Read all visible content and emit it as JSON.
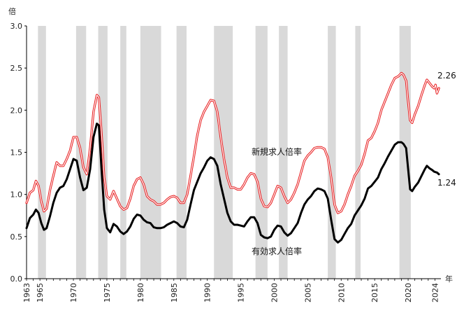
{
  "chart_data": {
    "type": "line",
    "y_unit": "倍",
    "x_unit": "年",
    "xlim": [
      1963,
      2024.9
    ],
    "ylim": [
      0.0,
      3.0
    ],
    "y_ticks": [
      "0.0",
      "0.5",
      "1.0",
      "1.5",
      "2.0",
      "2.5",
      "3.0"
    ],
    "x_tick_years": [
      1963,
      1965,
      1970,
      1975,
      1980,
      1985,
      1990,
      1995,
      2000,
      2005,
      2010,
      2015,
      2020,
      2024
    ],
    "recession_periods": [
      [
        1964.7,
        1965.9
      ],
      [
        1970.4,
        1971.9
      ],
      [
        1973.7,
        1975.1
      ],
      [
        1977.0,
        1977.9
      ],
      [
        1980.0,
        1983.1
      ],
      [
        1985.4,
        1986.9
      ],
      [
        1991.0,
        1993.8
      ],
      [
        1997.2,
        1999.0
      ],
      [
        2000.7,
        2002.0
      ],
      [
        2008.0,
        2009.2
      ],
      [
        2012.1,
        2012.9
      ],
      [
        2018.7,
        2020.4
      ]
    ],
    "series": [
      {
        "name": "新規求人倍率",
        "color": "#e8191b",
        "end_label": "2.26",
        "points": [
          [
            1963.0,
            0.9
          ],
          [
            1963.5,
            1.02
          ],
          [
            1964.0,
            1.05
          ],
          [
            1964.4,
            1.16
          ],
          [
            1964.8,
            1.1
          ],
          [
            1965.2,
            0.92
          ],
          [
            1965.6,
            0.8
          ],
          [
            1966.0,
            0.83
          ],
          [
            1966.5,
            1.05
          ],
          [
            1967.0,
            1.22
          ],
          [
            1967.5,
            1.38
          ],
          [
            1968.0,
            1.34
          ],
          [
            1968.5,
            1.34
          ],
          [
            1969.0,
            1.42
          ],
          [
            1969.5,
            1.52
          ],
          [
            1970.0,
            1.68
          ],
          [
            1970.5,
            1.68
          ],
          [
            1971.0,
            1.55
          ],
          [
            1971.5,
            1.32
          ],
          [
            1972.0,
            1.24
          ],
          [
            1972.5,
            1.55
          ],
          [
            1973.0,
            1.98
          ],
          [
            1973.5,
            2.18
          ],
          [
            1973.8,
            2.15
          ],
          [
            1974.2,
            1.72
          ],
          [
            1974.6,
            1.2
          ],
          [
            1975.0,
            0.98
          ],
          [
            1975.5,
            0.94
          ],
          [
            1976.0,
            1.04
          ],
          [
            1976.5,
            0.95
          ],
          [
            1977.0,
            0.86
          ],
          [
            1977.5,
            0.82
          ],
          [
            1978.0,
            0.84
          ],
          [
            1978.5,
            0.95
          ],
          [
            1979.0,
            1.1
          ],
          [
            1979.5,
            1.18
          ],
          [
            1980.0,
            1.2
          ],
          [
            1980.5,
            1.12
          ],
          [
            1981.0,
            0.98
          ],
          [
            1981.5,
            0.94
          ],
          [
            1982.0,
            0.92
          ],
          [
            1982.5,
            0.88
          ],
          [
            1983.0,
            0.88
          ],
          [
            1983.5,
            0.9
          ],
          [
            1984.0,
            0.94
          ],
          [
            1984.5,
            0.97
          ],
          [
            1985.0,
            0.98
          ],
          [
            1985.5,
            0.96
          ],
          [
            1986.0,
            0.9
          ],
          [
            1986.5,
            0.9
          ],
          [
            1987.0,
            1.0
          ],
          [
            1987.5,
            1.22
          ],
          [
            1988.0,
            1.45
          ],
          [
            1988.5,
            1.7
          ],
          [
            1989.0,
            1.88
          ],
          [
            1989.5,
            1.98
          ],
          [
            1990.0,
            2.05
          ],
          [
            1990.5,
            2.12
          ],
          [
            1991.0,
            2.11
          ],
          [
            1991.5,
            1.98
          ],
          [
            1992.0,
            1.68
          ],
          [
            1992.5,
            1.42
          ],
          [
            1993.0,
            1.2
          ],
          [
            1993.5,
            1.08
          ],
          [
            1994.0,
            1.08
          ],
          [
            1994.5,
            1.06
          ],
          [
            1995.0,
            1.06
          ],
          [
            1995.5,
            1.12
          ],
          [
            1996.0,
            1.2
          ],
          [
            1996.5,
            1.25
          ],
          [
            1997.0,
            1.24
          ],
          [
            1997.5,
            1.15
          ],
          [
            1998.0,
            0.95
          ],
          [
            1998.5,
            0.86
          ],
          [
            1999.0,
            0.85
          ],
          [
            1999.5,
            0.9
          ],
          [
            2000.0,
            1.0
          ],
          [
            2000.5,
            1.1
          ],
          [
            2001.0,
            1.08
          ],
          [
            2001.5,
            0.98
          ],
          [
            2002.0,
            0.9
          ],
          [
            2002.5,
            0.94
          ],
          [
            2003.0,
            1.02
          ],
          [
            2003.5,
            1.12
          ],
          [
            2004.0,
            1.26
          ],
          [
            2004.5,
            1.4
          ],
          [
            2005.0,
            1.46
          ],
          [
            2005.5,
            1.5
          ],
          [
            2006.0,
            1.55
          ],
          [
            2006.5,
            1.56
          ],
          [
            2007.0,
            1.56
          ],
          [
            2007.5,
            1.54
          ],
          [
            2008.0,
            1.44
          ],
          [
            2008.5,
            1.2
          ],
          [
            2009.0,
            0.88
          ],
          [
            2009.5,
            0.78
          ],
          [
            2010.0,
            0.8
          ],
          [
            2010.5,
            0.88
          ],
          [
            2011.0,
            1.0
          ],
          [
            2011.5,
            1.1
          ],
          [
            2012.0,
            1.22
          ],
          [
            2012.5,
            1.28
          ],
          [
            2013.0,
            1.35
          ],
          [
            2013.5,
            1.48
          ],
          [
            2014.0,
            1.64
          ],
          [
            2014.5,
            1.67
          ],
          [
            2015.0,
            1.75
          ],
          [
            2015.5,
            1.85
          ],
          [
            2016.0,
            2.0
          ],
          [
            2016.5,
            2.1
          ],
          [
            2017.0,
            2.2
          ],
          [
            2017.5,
            2.3
          ],
          [
            2018.0,
            2.38
          ],
          [
            2018.5,
            2.4
          ],
          [
            2019.0,
            2.44
          ],
          [
            2019.3,
            2.42
          ],
          [
            2019.7,
            2.35
          ],
          [
            2020.0,
            2.1
          ],
          [
            2020.3,
            1.88
          ],
          [
            2020.6,
            1.85
          ],
          [
            2021.0,
            1.95
          ],
          [
            2021.5,
            2.05
          ],
          [
            2022.0,
            2.18
          ],
          [
            2022.5,
            2.3
          ],
          [
            2022.8,
            2.36
          ],
          [
            2023.2,
            2.32
          ],
          [
            2023.6,
            2.28
          ],
          [
            2023.9,
            2.26
          ],
          [
            2024.1,
            2.3
          ],
          [
            2024.3,
            2.2
          ],
          [
            2024.6,
            2.26
          ]
        ]
      },
      {
        "name": "有効求人倍率",
        "color": "#000000",
        "end_label": "1.24",
        "points": [
          [
            1963.0,
            0.6
          ],
          [
            1963.5,
            0.72
          ],
          [
            1964.0,
            0.76
          ],
          [
            1964.4,
            0.82
          ],
          [
            1964.8,
            0.78
          ],
          [
            1965.2,
            0.66
          ],
          [
            1965.6,
            0.58
          ],
          [
            1966.0,
            0.6
          ],
          [
            1966.5,
            0.74
          ],
          [
            1967.0,
            0.9
          ],
          [
            1967.5,
            1.02
          ],
          [
            1968.0,
            1.08
          ],
          [
            1968.5,
            1.1
          ],
          [
            1969.0,
            1.18
          ],
          [
            1969.5,
            1.3
          ],
          [
            1970.0,
            1.42
          ],
          [
            1970.5,
            1.4
          ],
          [
            1971.0,
            1.2
          ],
          [
            1971.5,
            1.05
          ],
          [
            1972.0,
            1.08
          ],
          [
            1972.5,
            1.3
          ],
          [
            1973.0,
            1.68
          ],
          [
            1973.5,
            1.84
          ],
          [
            1973.8,
            1.82
          ],
          [
            1974.2,
            1.3
          ],
          [
            1974.6,
            0.82
          ],
          [
            1975.0,
            0.6
          ],
          [
            1975.5,
            0.55
          ],
          [
            1976.0,
            0.65
          ],
          [
            1976.5,
            0.62
          ],
          [
            1977.0,
            0.56
          ],
          [
            1977.5,
            0.53
          ],
          [
            1978.0,
            0.56
          ],
          [
            1978.5,
            0.62
          ],
          [
            1979.0,
            0.71
          ],
          [
            1979.5,
            0.76
          ],
          [
            1980.0,
            0.75
          ],
          [
            1980.5,
            0.7
          ],
          [
            1981.0,
            0.67
          ],
          [
            1981.5,
            0.66
          ],
          [
            1982.0,
            0.61
          ],
          [
            1982.5,
            0.6
          ],
          [
            1983.0,
            0.6
          ],
          [
            1983.5,
            0.61
          ],
          [
            1984.0,
            0.64
          ],
          [
            1984.5,
            0.66
          ],
          [
            1985.0,
            0.68
          ],
          [
            1985.5,
            0.66
          ],
          [
            1986.0,
            0.62
          ],
          [
            1986.5,
            0.61
          ],
          [
            1987.0,
            0.7
          ],
          [
            1987.5,
            0.88
          ],
          [
            1988.0,
            1.05
          ],
          [
            1988.5,
            1.15
          ],
          [
            1989.0,
            1.25
          ],
          [
            1989.5,
            1.32
          ],
          [
            1990.0,
            1.4
          ],
          [
            1990.5,
            1.44
          ],
          [
            1991.0,
            1.42
          ],
          [
            1991.5,
            1.34
          ],
          [
            1992.0,
            1.12
          ],
          [
            1992.5,
            0.95
          ],
          [
            1993.0,
            0.78
          ],
          [
            1993.5,
            0.68
          ],
          [
            1994.0,
            0.64
          ],
          [
            1994.5,
            0.64
          ],
          [
            1995.0,
            0.63
          ],
          [
            1995.5,
            0.62
          ],
          [
            1996.0,
            0.68
          ],
          [
            1996.5,
            0.73
          ],
          [
            1997.0,
            0.73
          ],
          [
            1997.5,
            0.66
          ],
          [
            1998.0,
            0.52
          ],
          [
            1998.5,
            0.49
          ],
          [
            1999.0,
            0.48
          ],
          [
            1999.5,
            0.5
          ],
          [
            2000.0,
            0.58
          ],
          [
            2000.5,
            0.63
          ],
          [
            2001.0,
            0.62
          ],
          [
            2001.5,
            0.55
          ],
          [
            2002.0,
            0.51
          ],
          [
            2002.5,
            0.54
          ],
          [
            2003.0,
            0.6
          ],
          [
            2003.5,
            0.66
          ],
          [
            2004.0,
            0.78
          ],
          [
            2004.5,
            0.88
          ],
          [
            2005.0,
            0.94
          ],
          [
            2005.5,
            0.98
          ],
          [
            2006.0,
            1.04
          ],
          [
            2006.5,
            1.07
          ],
          [
            2007.0,
            1.06
          ],
          [
            2007.5,
            1.04
          ],
          [
            2008.0,
            0.95
          ],
          [
            2008.5,
            0.7
          ],
          [
            2009.0,
            0.47
          ],
          [
            2009.5,
            0.43
          ],
          [
            2010.0,
            0.46
          ],
          [
            2010.5,
            0.53
          ],
          [
            2011.0,
            0.6
          ],
          [
            2011.5,
            0.65
          ],
          [
            2012.0,
            0.75
          ],
          [
            2012.5,
            0.81
          ],
          [
            2013.0,
            0.87
          ],
          [
            2013.5,
            0.95
          ],
          [
            2014.0,
            1.07
          ],
          [
            2014.5,
            1.1
          ],
          [
            2015.0,
            1.15
          ],
          [
            2015.5,
            1.2
          ],
          [
            2016.0,
            1.3
          ],
          [
            2016.5,
            1.37
          ],
          [
            2017.0,
            1.45
          ],
          [
            2017.5,
            1.52
          ],
          [
            2018.0,
            1.59
          ],
          [
            2018.5,
            1.62
          ],
          [
            2019.0,
            1.62
          ],
          [
            2019.3,
            1.6
          ],
          [
            2019.7,
            1.55
          ],
          [
            2020.0,
            1.3
          ],
          [
            2020.3,
            1.06
          ],
          [
            2020.6,
            1.04
          ],
          [
            2021.0,
            1.09
          ],
          [
            2021.5,
            1.14
          ],
          [
            2022.0,
            1.22
          ],
          [
            2022.5,
            1.3
          ],
          [
            2022.8,
            1.34
          ],
          [
            2023.2,
            1.31
          ],
          [
            2023.6,
            1.29
          ],
          [
            2023.9,
            1.27
          ],
          [
            2024.3,
            1.26
          ],
          [
            2024.6,
            1.24
          ]
        ]
      }
    ]
  }
}
